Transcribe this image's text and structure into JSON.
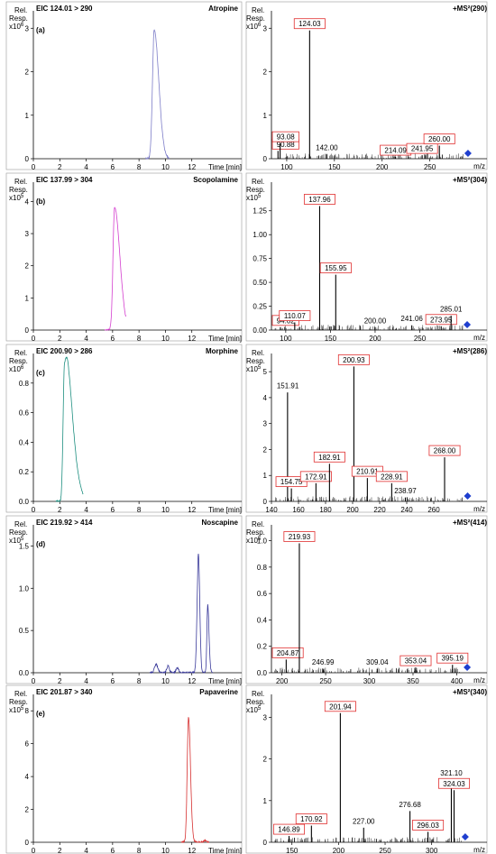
{
  "figure": {
    "y_axis_label_line1": "Rel.",
    "y_axis_label_line2": "Resp.",
    "chrom_x_unit": "Time [min]",
    "ms_x_unit": "m/z",
    "marker_color": "#1f3fcf",
    "label_box_color": "#e03030"
  },
  "chart_data": [
    {
      "type": "line",
      "panel": "chromatogram",
      "title": "EIC 124.01 > 290",
      "compound": "Atropine",
      "letter": "(a)",
      "exponent": "6",
      "line_color": "#7d7dc8",
      "xlim": [
        0,
        14
      ],
      "ylim": [
        0,
        3.4
      ],
      "x_ticks": [
        0,
        2,
        4,
        6,
        8,
        10,
        12
      ],
      "y_ticks": [
        0,
        1,
        2,
        3
      ],
      "peaks": [
        [
          9.15,
          2.95,
          0.13,
          0.35
        ]
      ],
      "trace_range": [
        8.5,
        10.3
      ]
    },
    {
      "type": "bar",
      "panel": "ms2",
      "title": "+MS²(290)",
      "xlim": [
        84,
        291
      ],
      "ylim": [
        0,
        3.4
      ],
      "x_ticks": [
        100,
        150,
        200,
        250
      ],
      "y_ticks": [
        0,
        1,
        2,
        3
      ],
      "y_exponent": "6",
      "peaks": [
        {
          "mz": 90.88,
          "i": 0.18,
          "label": "90.88",
          "boxed": true
        },
        {
          "mz": 93.08,
          "i": 0.35,
          "label": "93.08",
          "boxed": true
        },
        {
          "mz": 124.03,
          "i": 2.95,
          "label": "124.03",
          "boxed": true
        },
        {
          "mz": 142.0,
          "i": 0.1,
          "label": "142.00",
          "boxed": false
        },
        {
          "mz": 214.09,
          "i": 0.04,
          "label": "214.09",
          "boxed": true
        },
        {
          "mz": 241.95,
          "i": 0.08,
          "label": "241.95",
          "boxed": true
        },
        {
          "mz": 260.0,
          "i": 0.3,
          "label": "260.00",
          "boxed": true
        }
      ],
      "marker_mz": 290
    },
    {
      "type": "line",
      "panel": "chromatogram",
      "title": "EIC 137.99 > 304",
      "compound": "Scopolamine",
      "letter": "(b)",
      "exponent": "5",
      "line_color": "#d43fcf",
      "xlim": [
        0,
        14
      ],
      "ylim": [
        0,
        4.6
      ],
      "x_ticks": [
        0,
        2,
        4,
        6,
        8,
        10,
        12
      ],
      "y_ticks": [
        0,
        1,
        2,
        3,
        4
      ],
      "peaks": [
        [
          6.15,
          3.8,
          0.12,
          0.4
        ]
      ],
      "trace_range": [
        5.4,
        7.0
      ]
    },
    {
      "type": "bar",
      "panel": "ms2",
      "title": "+MS²(304)",
      "xlim": [
        84,
        305
      ],
      "ylim": [
        0,
        1.55
      ],
      "x_ticks": [
        100,
        150,
        200,
        250
      ],
      "y_ticks": [
        0,
        0.25,
        0.5,
        0.75,
        1.0,
        1.25
      ],
      "y_tick_labels": [
        "0.00",
        "0.25",
        "0.50",
        "0.75",
        "1.00",
        "1.25"
      ],
      "y_exponent": "5",
      "peaks": [
        {
          "mz": 94.02,
          "i": 0.03,
          "label": "94.02",
          "boxed": true
        },
        {
          "mz": 110.07,
          "i": 0.08,
          "label": "110.07",
          "boxed": true
        },
        {
          "mz": 137.96,
          "i": 1.3,
          "label": "137.96",
          "boxed": true
        },
        {
          "mz": 155.95,
          "i": 0.58,
          "label": "155.95",
          "boxed": true
        },
        {
          "mz": 200.0,
          "i": 0.03,
          "label": "200.00",
          "boxed": false
        },
        {
          "mz": 241.06,
          "i": 0.05,
          "label": "241.06",
          "boxed": false
        },
        {
          "mz": 273.95,
          "i": 0.04,
          "label": "273.95",
          "boxed": true
        },
        {
          "mz": 285.01,
          "i": 0.15,
          "label": "285.01",
          "boxed": false
        }
      ],
      "marker_mz": 303
    },
    {
      "type": "line",
      "panel": "chromatogram",
      "title": "EIC 200.90 > 286",
      "compound": "Morphine",
      "letter": "(c)",
      "exponent": "6",
      "line_color": "#1e8f80",
      "xlim": [
        0,
        14
      ],
      "ylim": [
        0,
        1.0
      ],
      "x_ticks": [
        0,
        2,
        4,
        6,
        8,
        10,
        12
      ],
      "y_ticks": [
        0,
        0.2,
        0.4,
        0.6,
        0.8
      ],
      "y_tick_labels": [
        "0.0",
        "0.2",
        "0.4",
        "0.6",
        "0.8"
      ],
      "peaks": [
        [
          2.35,
          0.86,
          0.1,
          0.5
        ],
        [
          2.65,
          0.2,
          0.2,
          0.6
        ]
      ],
      "trace_range": [
        1.7,
        3.8
      ]
    },
    {
      "type": "bar",
      "panel": "ms2",
      "title": "+MS²(286)",
      "xlim": [
        140,
        286
      ],
      "ylim": [
        0,
        5.7
      ],
      "x_ticks": [
        140,
        160,
        180,
        200,
        220,
        240,
        260
      ],
      "y_ticks": [
        0,
        1,
        2,
        3,
        4,
        5
      ],
      "y_exponent": "5",
      "peaks": [
        {
          "mz": 151.91,
          "i": 4.2,
          "label": "151.91",
          "boxed": false
        },
        {
          "mz": 154.75,
          "i": 0.5,
          "label": "154.75",
          "boxed": true
        },
        {
          "mz": 172.91,
          "i": 0.7,
          "label": "172.91",
          "boxed": true
        },
        {
          "mz": 182.91,
          "i": 1.45,
          "label": "182.91",
          "boxed": true
        },
        {
          "mz": 200.93,
          "i": 5.2,
          "label": "200.93",
          "boxed": true
        },
        {
          "mz": 210.91,
          "i": 0.9,
          "label": "210.91",
          "boxed": true
        },
        {
          "mz": 228.91,
          "i": 0.7,
          "label": "228.91",
          "boxed": true
        },
        {
          "mz": 238.97,
          "i": 0.15,
          "label": "238.97",
          "boxed": false
        },
        {
          "mz": 268.0,
          "i": 1.7,
          "label": "268.00",
          "boxed": true
        }
      ],
      "marker_mz": 285
    },
    {
      "type": "line",
      "panel": "chromatogram",
      "title": "EIC 219.92 > 414",
      "compound": "Noscapine",
      "letter": "(d)",
      "exponent": "5",
      "line_color": "#3a3a9a",
      "xlim": [
        0,
        14
      ],
      "ylim": [
        0,
        1.75
      ],
      "x_ticks": [
        0,
        2,
        4,
        6,
        8,
        10,
        12
      ],
      "y_ticks": [
        0,
        0.5,
        1.0,
        1.5
      ],
      "y_tick_labels": [
        "0.0",
        "0.5",
        "1.0",
        "1.5"
      ],
      "peaks": [
        [
          9.3,
          0.1,
          0.12,
          0.12
        ],
        [
          10.2,
          0.08,
          0.1,
          0.1
        ],
        [
          10.9,
          0.06,
          0.1,
          0.1
        ],
        [
          12.5,
          1.4,
          0.1,
          0.1
        ],
        [
          13.2,
          0.8,
          0.06,
          0.1
        ]
      ],
      "trace_range": [
        8.8,
        13.6
      ]
    },
    {
      "type": "bar",
      "panel": "ms2",
      "title": "+MS²(414)",
      "xlim": [
        188,
        414
      ],
      "ylim": [
        0,
        1.12
      ],
      "x_ticks": [
        200,
        250,
        300,
        350,
        400
      ],
      "y_ticks": [
        0,
        0.2,
        0.4,
        0.6,
        0.8,
        1.0
      ],
      "y_tick_labels": [
        "0.0",
        "0.2",
        "0.4",
        "0.6",
        "0.8",
        "1.0"
      ],
      "y_exponent": "5",
      "peaks": [
        {
          "mz": 204.87,
          "i": 0.1,
          "label": "204.87",
          "boxed": true
        },
        {
          "mz": 219.93,
          "i": 0.98,
          "label": "219.93",
          "boxed": true
        },
        {
          "mz": 246.99,
          "i": 0.03,
          "label": "246.99",
          "boxed": false
        },
        {
          "mz": 309.04,
          "i": 0.03,
          "label": "309.04",
          "boxed": false
        },
        {
          "mz": 353.04,
          "i": 0.04,
          "label": "353.04",
          "boxed": true
        },
        {
          "mz": 395.19,
          "i": 0.06,
          "label": "395.19",
          "boxed": true
        }
      ],
      "marker_mz": 412
    },
    {
      "type": "line",
      "panel": "chromatogram",
      "title": "EIC 201.87 > 340",
      "compound": "Papaverine",
      "letter": "(e)",
      "exponent": "5",
      "line_color": "#d63030",
      "xlim": [
        0,
        14
      ],
      "ylim": [
        0,
        9.0
      ],
      "x_ticks": [
        0,
        2,
        4,
        6,
        8,
        10,
        12
      ],
      "y_ticks": [
        0,
        2,
        4,
        6,
        8
      ],
      "peaks": [
        [
          11.75,
          7.6,
          0.1,
          0.15
        ],
        [
          13.0,
          0.1,
          0.1,
          0.1
        ]
      ],
      "trace_range": [
        11.2,
        13.3
      ]
    },
    {
      "type": "bar",
      "panel": "ms2",
      "title": "+MS²(340)",
      "xlim": [
        128,
        340
      ],
      "ylim": [
        0,
        3.55
      ],
      "x_ticks": [
        150,
        200,
        250,
        300
      ],
      "y_ticks": [
        0,
        1,
        2,
        3
      ],
      "y_exponent": "5",
      "peaks": [
        {
          "mz": 146.89,
          "i": 0.15,
          "label": "146.89",
          "boxed": true
        },
        {
          "mz": 170.92,
          "i": 0.4,
          "label": "170.92",
          "boxed": true
        },
        {
          "mz": 201.94,
          "i": 3.1,
          "label": "201.94",
          "boxed": true
        },
        {
          "mz": 227.0,
          "i": 0.35,
          "label": "227.00",
          "boxed": false
        },
        {
          "mz": 276.68,
          "i": 0.75,
          "label": "276.68",
          "boxed": false
        },
        {
          "mz": 296.03,
          "i": 0.25,
          "label": "296.03",
          "boxed": true
        },
        {
          "mz": 321.1,
          "i": 1.5,
          "label": "321.10",
          "boxed": false
        },
        {
          "mz": 324.03,
          "i": 1.25,
          "label": "324.03",
          "boxed": true
        }
      ],
      "marker_mz": 336
    }
  ]
}
